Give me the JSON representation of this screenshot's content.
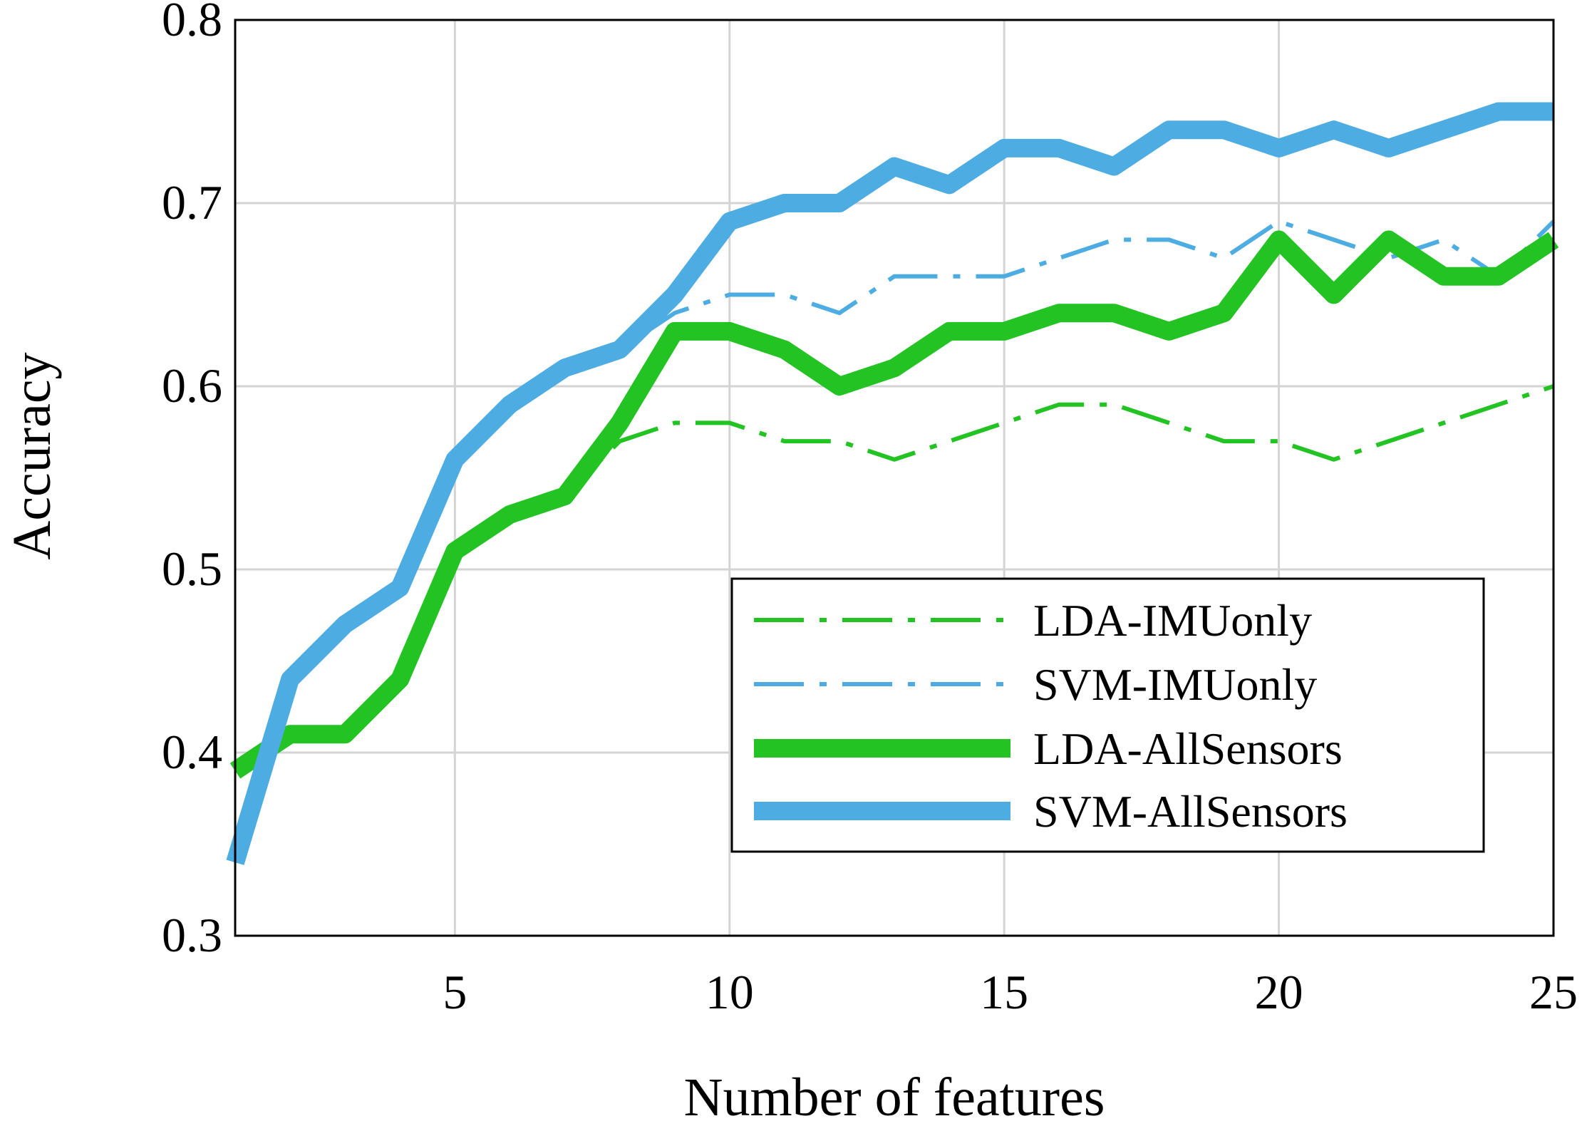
{
  "chart_data": {
    "type": "line",
    "title": "",
    "xlabel": "Number of features",
    "ylabel": "Accuracy",
    "xlim": [
      1,
      25
    ],
    "ylim": [
      0.3,
      0.8
    ],
    "xticks": [
      5,
      10,
      15,
      20,
      25
    ],
    "yticks": [
      0.3,
      0.4,
      0.5,
      0.6,
      0.7,
      0.8
    ],
    "xtick_labels": [
      "5",
      "10",
      "15",
      "20",
      "25"
    ],
    "ytick_labels": [
      "0.3",
      "0.4",
      "0.5",
      "0.6",
      "0.7",
      "0.8"
    ],
    "grid": true,
    "legend_position": "bottom-right",
    "x": [
      1,
      2,
      3,
      4,
      5,
      6,
      7,
      8,
      9,
      10,
      11,
      12,
      13,
      14,
      15,
      16,
      17,
      18,
      19,
      20,
      21,
      22,
      23,
      24,
      25
    ],
    "series": [
      {
        "name": "LDA-IMUonly",
        "color": "#22c322",
        "style": "dashdot-thin",
        "values": [
          0.39,
          0.41,
          0.41,
          0.44,
          0.51,
          0.53,
          0.54,
          0.57,
          0.58,
          0.58,
          0.57,
          0.57,
          0.56,
          0.57,
          0.58,
          0.59,
          0.59,
          0.58,
          0.57,
          0.57,
          0.56,
          0.57,
          0.58,
          0.59,
          0.6
        ]
      },
      {
        "name": "SVM-IMUonly",
        "color": "#4dade3",
        "style": "dashdot-thin",
        "values": [
          0.34,
          0.44,
          0.47,
          0.49,
          0.56,
          0.59,
          0.61,
          0.62,
          0.64,
          0.65,
          0.65,
          0.64,
          0.66,
          0.66,
          0.66,
          0.67,
          0.68,
          0.68,
          0.67,
          0.69,
          0.68,
          0.67,
          0.68,
          0.66,
          0.69
        ]
      },
      {
        "name": "LDA-AllSensors",
        "color": "#22c322",
        "style": "solid-thick",
        "values": [
          0.39,
          0.41,
          0.41,
          0.44,
          0.51,
          0.53,
          0.54,
          0.58,
          0.63,
          0.63,
          0.62,
          0.6,
          0.61,
          0.63,
          0.63,
          0.64,
          0.64,
          0.63,
          0.64,
          0.68,
          0.65,
          0.68,
          0.66,
          0.66,
          0.68
        ]
      },
      {
        "name": "SVM-AllSensors",
        "color": "#4dade3",
        "style": "solid-thick",
        "values": [
          0.34,
          0.44,
          0.47,
          0.49,
          0.56,
          0.59,
          0.61,
          0.62,
          0.65,
          0.69,
          0.7,
          0.7,
          0.72,
          0.71,
          0.73,
          0.73,
          0.72,
          0.74,
          0.74,
          0.73,
          0.74,
          0.73,
          0.74,
          0.75,
          0.75
        ]
      }
    ]
  }
}
